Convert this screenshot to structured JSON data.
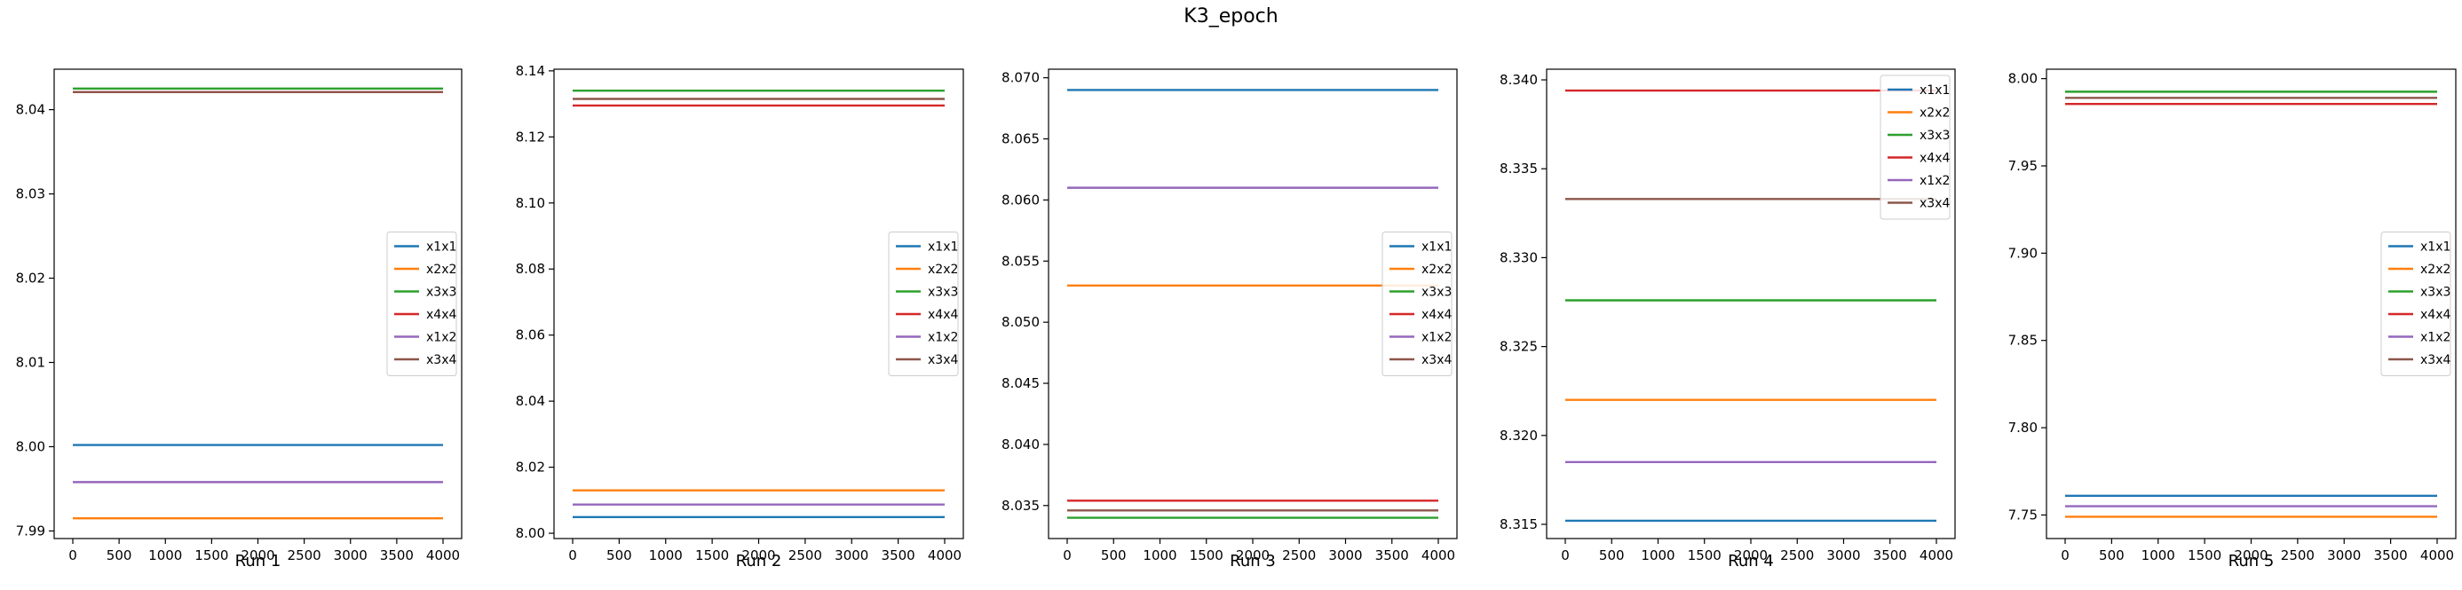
{
  "figure_title": "K3_epoch",
  "chart_data": [
    {
      "type": "line",
      "title": "",
      "xlabel": "Run 1",
      "ylabel": "",
      "x": [
        0,
        4000
      ],
      "xticks": [
        0,
        500,
        1000,
        1500,
        2000,
        2500,
        3000,
        3500,
        4000
      ],
      "yticks": [
        7.99,
        8.0,
        8.01,
        8.02,
        8.03,
        8.04
      ],
      "ytick_decimals": 2,
      "ylim": [
        7.9891,
        8.0448
      ],
      "grid": false,
      "legend_position": "center-right",
      "series": [
        {
          "name": "x1x1",
          "values": [
            8.0002,
            8.0002
          ],
          "color": "#1f77b4"
        },
        {
          "name": "x2x2",
          "values": [
            7.9915,
            7.9915
          ],
          "color": "#ff7f0e"
        },
        {
          "name": "x3x3",
          "values": [
            8.0425,
            8.0425
          ],
          "color": "#2ca02c"
        },
        {
          "name": "x4x4",
          "values": [
            8.0421,
            8.0421
          ],
          "color": "#d62728"
        },
        {
          "name": "x1x2",
          "values": [
            7.9958,
            7.9958
          ],
          "color": "#9467bd"
        },
        {
          "name": "x3x4",
          "values": [
            8.0421,
            8.0421
          ],
          "color": "#8c564b"
        }
      ]
    },
    {
      "type": "line",
      "title": "",
      "xlabel": "Run 2",
      "ylabel": "",
      "x": [
        0,
        4000
      ],
      "xticks": [
        0,
        500,
        1000,
        1500,
        2000,
        2500,
        3000,
        3500,
        4000
      ],
      "yticks": [
        8.0,
        8.02,
        8.04,
        8.06,
        8.08,
        8.1,
        8.12,
        8.14
      ],
      "ytick_decimals": 2,
      "ylim": [
        7.9984,
        8.1405
      ],
      "grid": false,
      "legend_position": "center-right",
      "series": [
        {
          "name": "x1x1",
          "values": [
            8.0049,
            8.0049
          ],
          "color": "#1f77b4"
        },
        {
          "name": "x2x2",
          "values": [
            8.013,
            8.013
          ],
          "color": "#ff7f0e"
        },
        {
          "name": "x3x3",
          "values": [
            8.134,
            8.134
          ],
          "color": "#2ca02c"
        },
        {
          "name": "x4x4",
          "values": [
            8.1295,
            8.1295
          ],
          "color": "#d62728"
        },
        {
          "name": "x1x2",
          "values": [
            8.0087,
            8.0087
          ],
          "color": "#9467bd"
        },
        {
          "name": "x3x4",
          "values": [
            8.1315,
            8.1315
          ],
          "color": "#8c564b"
        }
      ]
    },
    {
      "type": "line",
      "title": "",
      "xlabel": "Run 3",
      "ylabel": "",
      "x": [
        0,
        4000
      ],
      "xticks": [
        0,
        500,
        1000,
        1500,
        2000,
        2500,
        3000,
        3500,
        4000
      ],
      "yticks": [
        8.035,
        8.04,
        8.045,
        8.05,
        8.055,
        8.06,
        8.065,
        8.07
      ],
      "ytick_decimals": 3,
      "ylim": [
        8.0323,
        8.0707
      ],
      "grid": false,
      "legend_position": "center-right",
      "series": [
        {
          "name": "x1x1",
          "values": [
            8.069,
            8.069
          ],
          "color": "#1f77b4"
        },
        {
          "name": "x2x2",
          "values": [
            8.053,
            8.053
          ],
          "color": "#ff7f0e"
        },
        {
          "name": "x3x3",
          "values": [
            8.034,
            8.034
          ],
          "color": "#2ca02c"
        },
        {
          "name": "x4x4",
          "values": [
            8.0354,
            8.0354
          ],
          "color": "#d62728"
        },
        {
          "name": "x1x2",
          "values": [
            8.061,
            8.061
          ],
          "color": "#9467bd"
        },
        {
          "name": "x3x4",
          "values": [
            8.0346,
            8.0346
          ],
          "color": "#8c564b"
        }
      ]
    },
    {
      "type": "line",
      "title": "",
      "xlabel": "Run 4",
      "ylabel": "",
      "x": [
        0,
        4000
      ],
      "xticks": [
        0,
        500,
        1000,
        1500,
        2000,
        2500,
        3000,
        3500,
        4000
      ],
      "yticks": [
        8.315,
        8.32,
        8.325,
        8.33,
        8.335,
        8.34
      ],
      "ytick_decimals": 3,
      "ylim": [
        8.3142,
        8.3406
      ],
      "grid": false,
      "legend_position": "top-right",
      "series": [
        {
          "name": "x1x1",
          "values": [
            8.3152,
            8.3152
          ],
          "color": "#1f77b4"
        },
        {
          "name": "x2x2",
          "values": [
            8.322,
            8.322
          ],
          "color": "#ff7f0e"
        },
        {
          "name": "x3x3",
          "values": [
            8.3276,
            8.3276
          ],
          "color": "#2ca02c"
        },
        {
          "name": "x4x4",
          "values": [
            8.3394,
            8.3394
          ],
          "color": "#d62728"
        },
        {
          "name": "x1x2",
          "values": [
            8.3185,
            8.3185
          ],
          "color": "#9467bd"
        },
        {
          "name": "x3x4",
          "values": [
            8.3333,
            8.3333
          ],
          "color": "#8c564b"
        }
      ]
    },
    {
      "type": "line",
      "title": "",
      "xlabel": "Run 5",
      "ylabel": "",
      "x": [
        0,
        4000
      ],
      "xticks": [
        0,
        500,
        1000,
        1500,
        2000,
        2500,
        3000,
        3500,
        4000
      ],
      "yticks": [
        7.75,
        7.8,
        7.85,
        7.9,
        7.95,
        8.0
      ],
      "ytick_decimals": 2,
      "ylim": [
        7.7365,
        8.0054
      ],
      "grid": false,
      "legend_position": "center-right",
      "series": [
        {
          "name": "x1x1",
          "values": [
            7.761,
            7.761
          ],
          "color": "#1f77b4"
        },
        {
          "name": "x2x2",
          "values": [
            7.749,
            7.749
          ],
          "color": "#ff7f0e"
        },
        {
          "name": "x3x3",
          "values": [
            7.9925,
            7.9925
          ],
          "color": "#2ca02c"
        },
        {
          "name": "x4x4",
          "values": [
            7.9855,
            7.9855
          ],
          "color": "#d62728"
        },
        {
          "name": "x1x2",
          "values": [
            7.755,
            7.755
          ],
          "color": "#9467bd"
        },
        {
          "name": "x3x4",
          "values": [
            7.989,
            7.989
          ],
          "color": "#8c564b"
        }
      ]
    }
  ]
}
